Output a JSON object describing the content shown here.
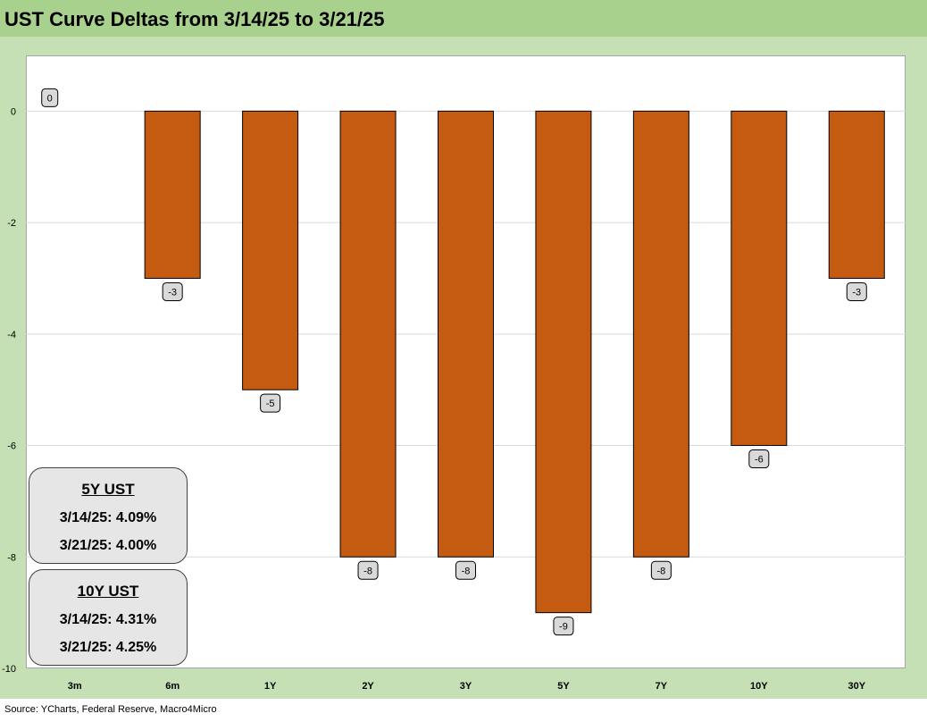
{
  "title": "UST Curve Deltas from 3/14/25 to 3/21/25",
  "source": "Source: YCharts, Federal Reserve, Macro4Micro",
  "colors": {
    "header_bg": "#a9d18e",
    "frame_bg": "#c5e0b4",
    "bar": "#c55a11",
    "label_bg": "#d9d9d9"
  },
  "info_boxes": [
    {
      "heading": "5Y UST",
      "lines": [
        "3/14/25: 4.09%",
        "3/21/25: 4.00%"
      ]
    },
    {
      "heading": "10Y UST",
      "lines": [
        "3/14/25: 4.31%",
        "3/21/25: 4.25%"
      ]
    }
  ],
  "chart_data": {
    "type": "bar",
    "title": "UST Curve Deltas from 3/14/25 to 3/21/25",
    "categories": [
      "3m",
      "6m",
      "1Y",
      "2Y",
      "3Y",
      "5Y",
      "7Y",
      "10Y",
      "30Y"
    ],
    "values": [
      0,
      -3,
      -5,
      -8,
      -8,
      -9,
      -8,
      -6,
      -3
    ],
    "data_labels": [
      "0",
      "-3",
      "-5",
      "-8",
      "-8",
      "-9",
      "-8",
      "-6",
      "-3"
    ],
    "ylim": [
      -10,
      1
    ],
    "yticks": [
      0,
      -2,
      -4,
      -6,
      -8,
      -10
    ],
    "ytick_labels": [
      "0",
      "-2",
      "-4",
      "-6",
      "-8",
      "-10"
    ],
    "xlabel": "",
    "ylabel": "",
    "grid": true,
    "legend": "none"
  }
}
